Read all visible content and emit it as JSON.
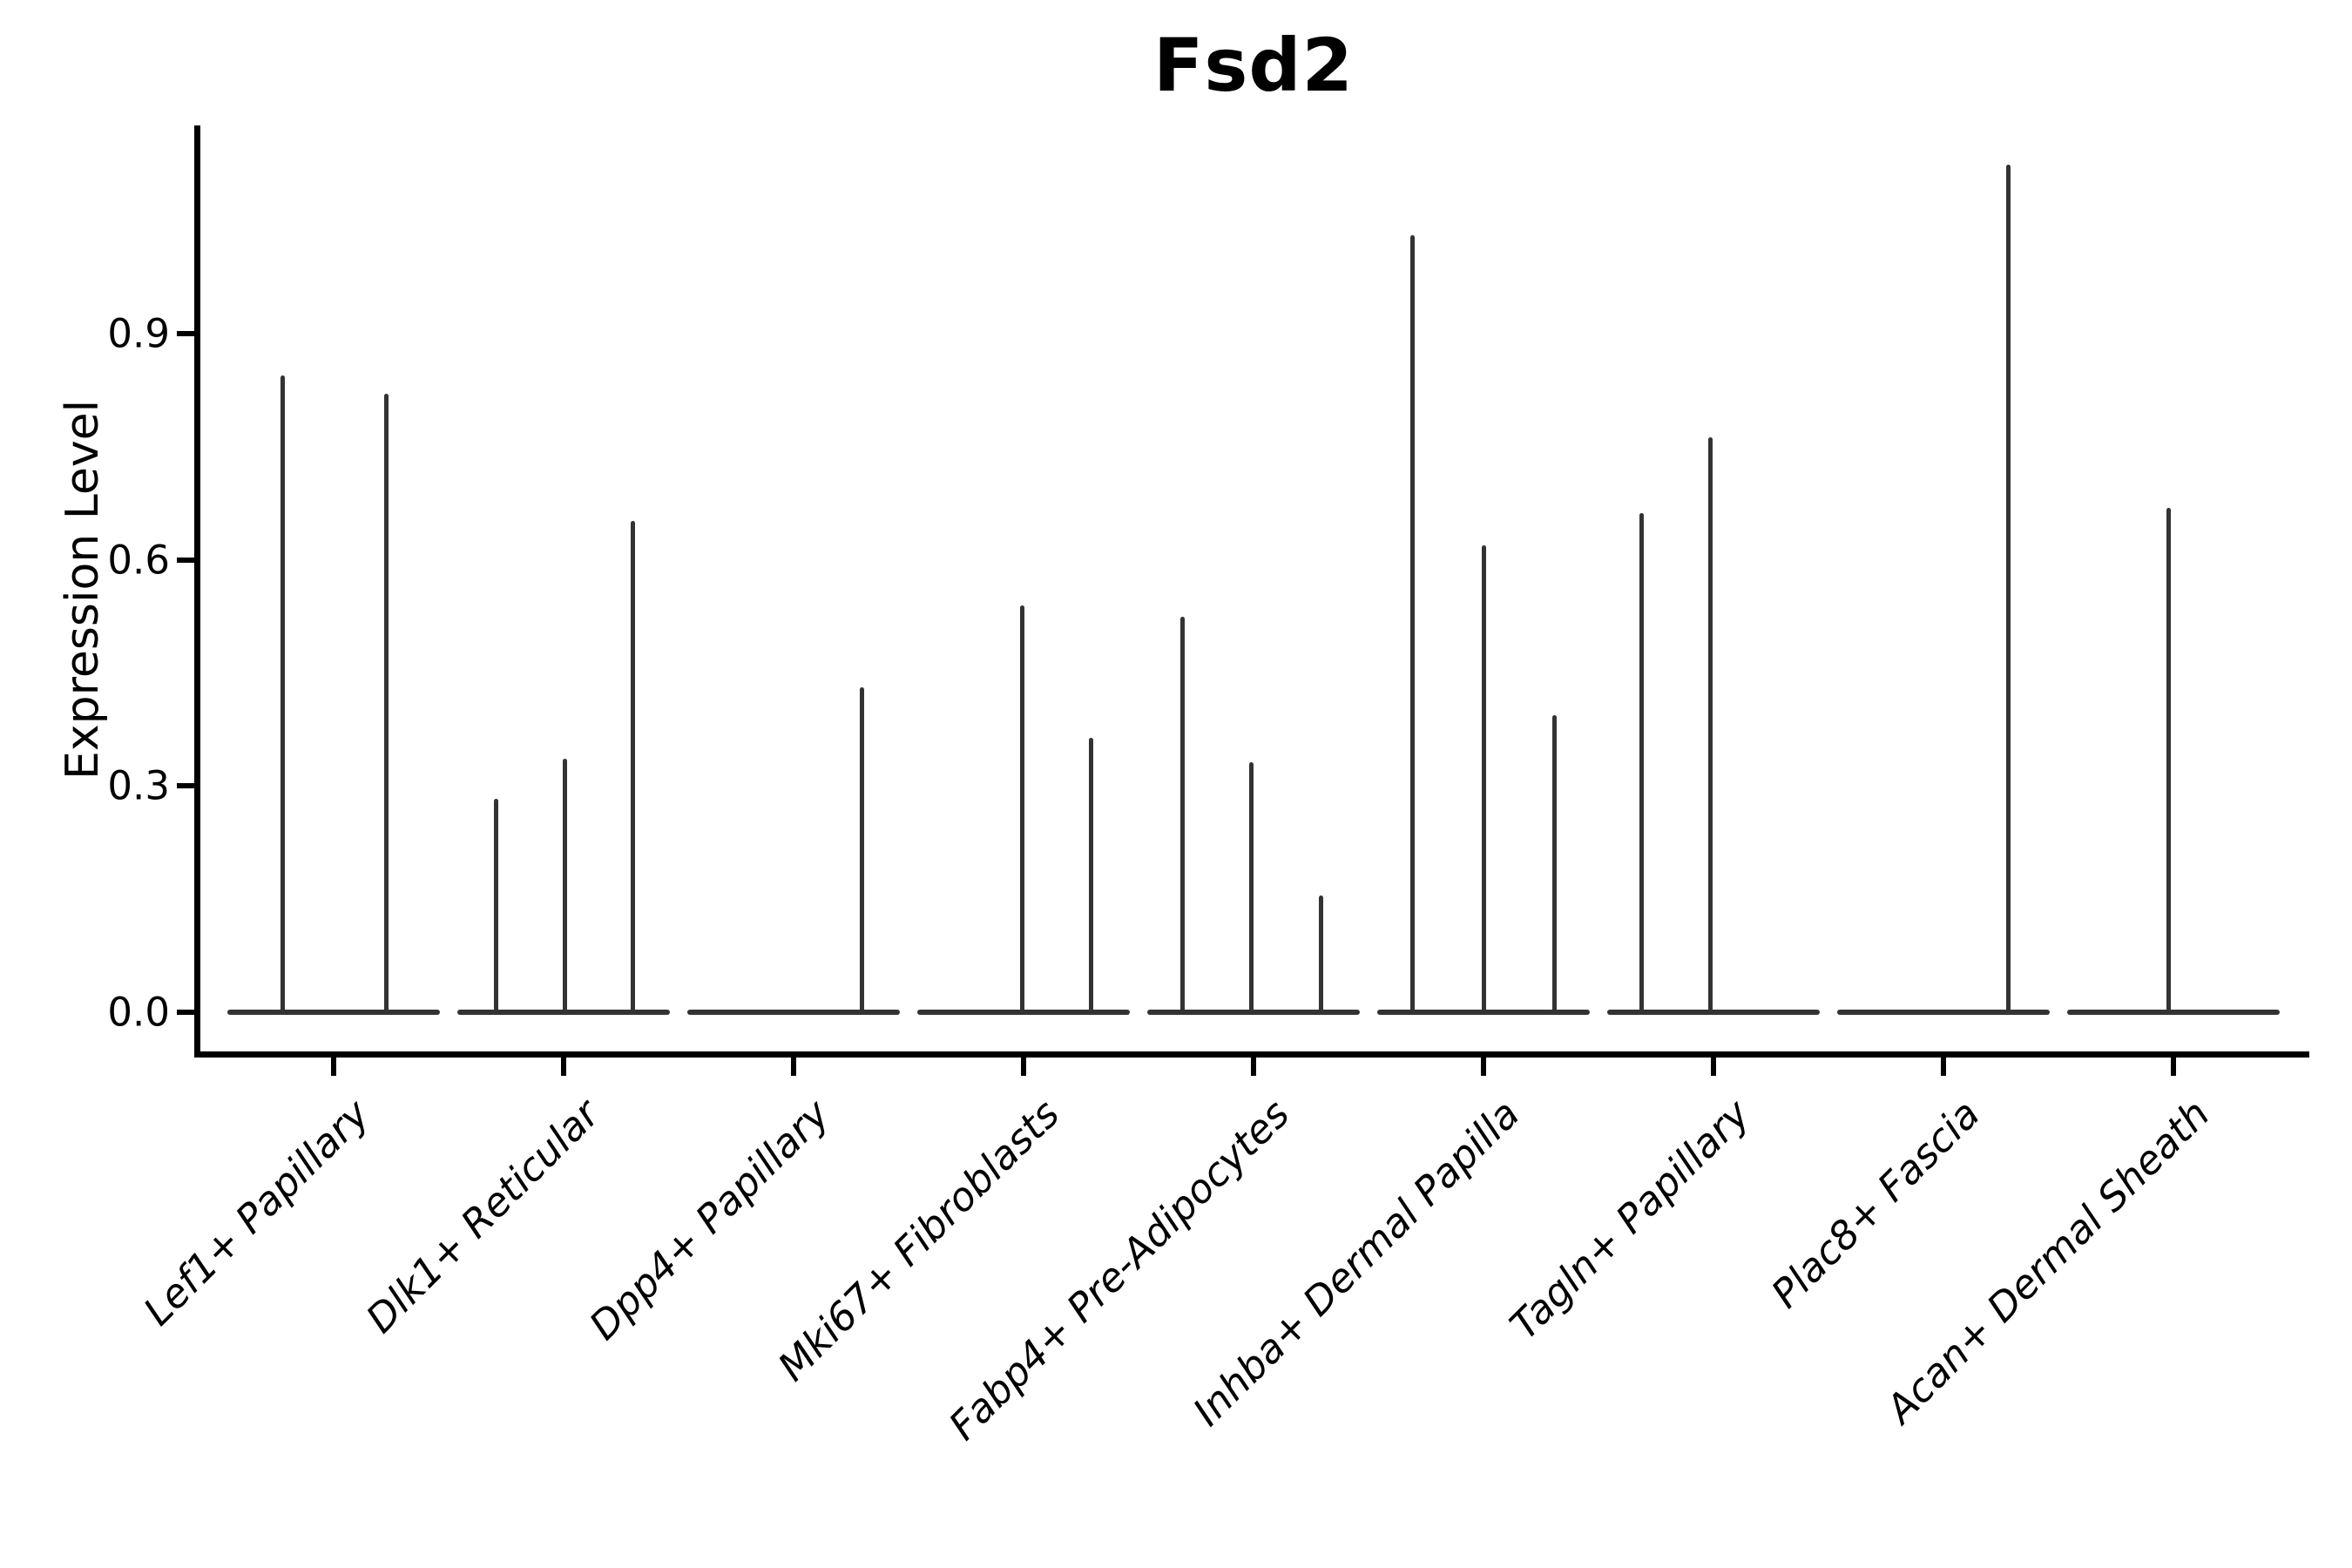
{
  "title": "Fsd2",
  "y_axis": {
    "label": "Expression Level",
    "tick_labels": [
      "0.0",
      "0.3",
      "0.6",
      "0.9"
    ],
    "tick_values": [
      0.0,
      0.3,
      0.6,
      0.9
    ]
  },
  "colors": {
    "violin_line": "#333333",
    "axis": "#000000",
    "background": "#ffffff",
    "text": "#000000"
  },
  "chart_data": {
    "type": "violin",
    "title": "Fsd2",
    "xlabel": "",
    "ylabel": "Expression Level",
    "yticks": [
      0.0,
      0.3,
      0.6,
      0.9
    ],
    "ylim": [
      -0.055,
      1.176
    ],
    "legend": "none",
    "grid": false,
    "x_label_rotation_deg": 45,
    "x_label_style": "italic",
    "note": "Sparse expression: each category shows a flat zero-density violin baseline plus thin vertical spikes reaching the expression level of rare expressing cells.",
    "categories": [
      "Lef1+ Papillary",
      "Dlk1+ Reticular",
      "Dpp4+ Papillary",
      "Mki67+ Fibroblasts",
      "Fabp4+ Pre-Adipocytes",
      "Inhba+ Dermal Papilla",
      "Tagln+ Papillary",
      "Plac8+ Fascia",
      "Acan+ Dermal Sheath"
    ],
    "violin_half_width_frac": 0.462,
    "series": [
      {
        "name": "Lef1+ Papillary",
        "baseline_value": 0,
        "spikes": [
          {
            "offset": -0.22,
            "value": 0.845
          },
          {
            "offset": 0.23,
            "value": 0.82
          }
        ]
      },
      {
        "name": "Dlk1+ Reticular",
        "baseline_value": 0,
        "spikes": [
          {
            "offset": -0.295,
            "value": 0.283
          },
          {
            "offset": 0.004,
            "value": 0.336
          },
          {
            "offset": 0.303,
            "value": 0.652
          }
        ]
      },
      {
        "name": "Dpp4+ Papillary",
        "baseline_value": 0,
        "spikes": [
          {
            "offset": 0.299,
            "value": 0.431
          }
        ]
      },
      {
        "name": "Mki67+ Fibroblasts",
        "baseline_value": 0,
        "spikes": [
          {
            "offset": -0.004,
            "value": 0.54
          },
          {
            "offset": 0.295,
            "value": 0.364
          }
        ]
      },
      {
        "name": "Fabp4+ Pre-Adipocytes",
        "baseline_value": 0,
        "spikes": [
          {
            "offset": -0.307,
            "value": 0.525
          },
          {
            "offset": -0.008,
            "value": 0.332
          },
          {
            "offset": 0.292,
            "value": 0.155
          }
        ]
      },
      {
        "name": "Inhba+ Dermal Papilla",
        "baseline_value": 0,
        "spikes": [
          {
            "offset": -0.307,
            "value": 1.031
          },
          {
            "offset": 0.0,
            "value": 0.619
          },
          {
            "offset": 0.307,
            "value": 0.394
          }
        ]
      },
      {
        "name": "Tagln+ Papillary",
        "baseline_value": 0,
        "spikes": [
          {
            "offset": -0.314,
            "value": 0.662
          },
          {
            "offset": -0.015,
            "value": 0.763
          }
        ]
      },
      {
        "name": "Plac8+ Fascia",
        "baseline_value": 0,
        "spikes": [
          {
            "offset": 0.284,
            "value": 1.124
          }
        ]
      },
      {
        "name": "Acan+ Dermal Sheath",
        "baseline_value": 0,
        "spikes": [
          {
            "offset": -0.019,
            "value": 0.669
          }
        ]
      }
    ]
  }
}
